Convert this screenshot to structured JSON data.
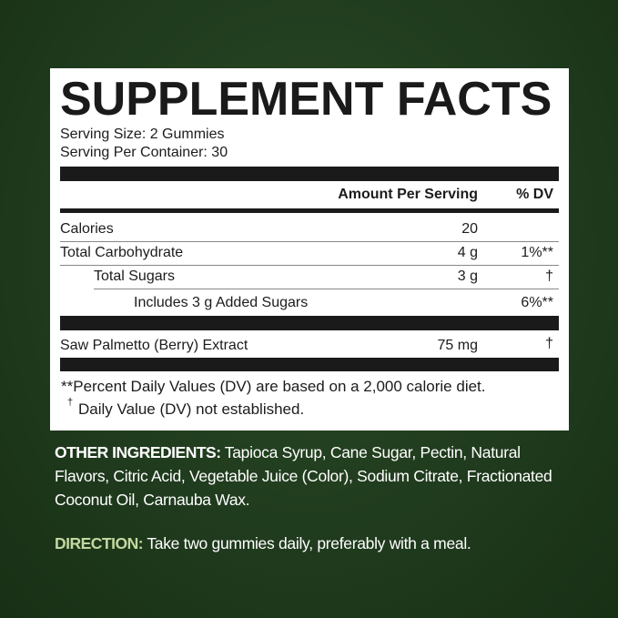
{
  "title": "SUPPLEMENT FACTS",
  "serving_size": "Serving Size: 2 Gummies",
  "servings_per_container": "Serving Per Container: 30",
  "header": {
    "amount": "Amount Per Serving",
    "dv": "% DV"
  },
  "rows": [
    {
      "name": "Calories",
      "amount": "20",
      "dv": ""
    },
    {
      "name": "Total Carbohydrate",
      "amount": "4 g",
      "dv": "1%**"
    },
    {
      "name": "Total Sugars",
      "amount": "3 g",
      "dv": "†"
    },
    {
      "name": "Includes 3 g Added Sugars",
      "amount": "",
      "dv": "6%**"
    },
    {
      "name": "Saw Palmetto (Berry) Extract",
      "amount": "75 mg",
      "dv": "†"
    }
  ],
  "footnotes": [
    "**Percent Daily Values (DV) are based on a 2,000 calorie diet.",
    "†",
    "Daily Value (DV) not established."
  ],
  "other_ingredients": {
    "label": "OTHER INGREDIENTS:",
    "text": " Tapioca Syrup, Cane Sugar, Pectin, Natural Flavors, Citric Acid, Vegetable Juice (Color), Sodium Citrate, Fractionated Coconut Oil, Carnauba Wax."
  },
  "direction": {
    "label": "DIRECTION:",
    "text": " Take two gummies daily, preferably with a meal."
  },
  "colors": {
    "background": "#1f3a1d",
    "accent": "#c3d8a0"
  }
}
